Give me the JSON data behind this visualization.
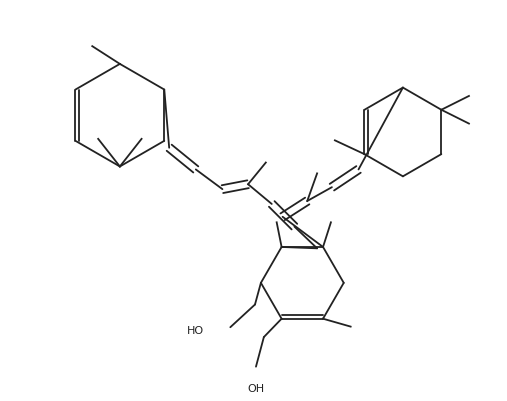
{
  "background_color": "#ffffff",
  "line_color": "#222222",
  "line_width": 1.3,
  "dbo": 0.008,
  "figsize": [
    5.07,
    4.02
  ],
  "dpi": 100
}
